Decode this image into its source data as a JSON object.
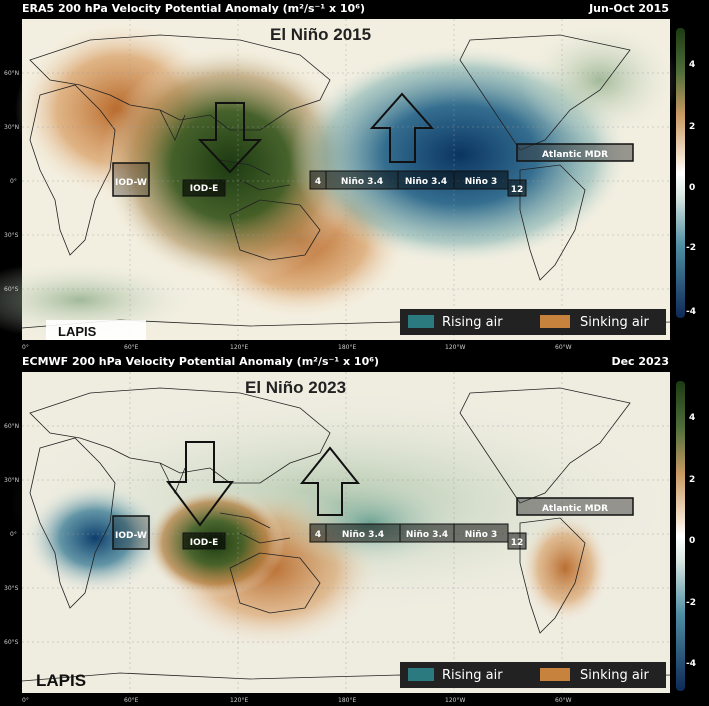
{
  "panels": [
    {
      "title": "ERA5 200 hPa Velocity Potential Anomaly (m²/s⁻¹ x 10⁶)",
      "period": "Jun-Oct 2015",
      "event": "El Niño 2015",
      "credit": "LAPIS",
      "regions": [
        "IOD-W",
        "IOD-E",
        "4",
        "Niño 3.4",
        "Niño 3.4",
        "Niño 3",
        "12",
        "Atlantic MDR"
      ],
      "legend": [
        "Rising air",
        "Sinking air"
      ]
    },
    {
      "title": "ECMWF 200 hPa Velocity Potential Anomaly (m²/s⁻¹ x 10⁶)",
      "period": "Dec 2023",
      "event": "El Niño 2023",
      "credit": "LAPIS",
      "regions": [
        "IOD-W",
        "IOD-E",
        "4",
        "Niño 3.4",
        "Niño 3.4",
        "Niño 3",
        "12",
        "Atlantic MDR"
      ],
      "legend": [
        "Rising air",
        "Sinking air"
      ]
    }
  ],
  "lon_ticks": [
    "0°",
    "60°E",
    "120°E",
    "180°E",
    "120°W",
    "60°W"
  ],
  "lat_ticks": [
    "60°N",
    "30°N",
    "0°",
    "30°S",
    "60°S"
  ],
  "colorbar_ticks": [
    "4",
    "2",
    "0",
    "-2",
    "-4"
  ],
  "colors": {
    "rising": "#2a7a7f",
    "sinking": "#c7823d",
    "strong_sink": "#1f3d12",
    "strong_rise": "#0b3b66"
  }
}
